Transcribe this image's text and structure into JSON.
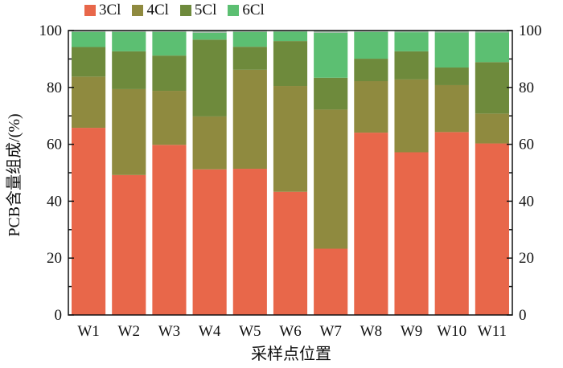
{
  "chart_data": {
    "type": "bar",
    "stacked": true,
    "categories": [
      "W1",
      "W2",
      "W3",
      "W4",
      "W5",
      "W6",
      "W7",
      "W8",
      "W9",
      "W10",
      "W11"
    ],
    "series": [
      {
        "name": "3Cl",
        "color": "#e8674a",
        "values": [
          65.8,
          49.2,
          59.8,
          51.2,
          51.4,
          43.3,
          23.3,
          64.1,
          57.2,
          64.3,
          60.3
        ]
      },
      {
        "name": "4Cl",
        "color": "#8f8a3f",
        "values": [
          18.0,
          30.2,
          19.0,
          18.6,
          34.8,
          37.2,
          48.9,
          18.1,
          25.6,
          16.5,
          10.5
        ]
      },
      {
        "name": "5Cl",
        "color": "#6e8a3c",
        "values": [
          10.4,
          13.3,
          12.4,
          27.0,
          8.1,
          15.8,
          11.2,
          7.9,
          9.9,
          6.2,
          18.1
        ]
      },
      {
        "name": "6Cl",
        "color": "#5cbf72",
        "values": [
          5.3,
          6.8,
          8.3,
          2.4,
          5.2,
          3.3,
          15.8,
          9.4,
          6.7,
          12.3,
          10.4
        ]
      }
    ],
    "ylabel": "PCB含量组成/(%)",
    "xlabel": "采样点位置",
    "ylim": [
      0,
      100
    ],
    "yticks": [
      0,
      20,
      40,
      60,
      80,
      100
    ],
    "legend_position": "top-left",
    "secondary_y_axis": true
  }
}
